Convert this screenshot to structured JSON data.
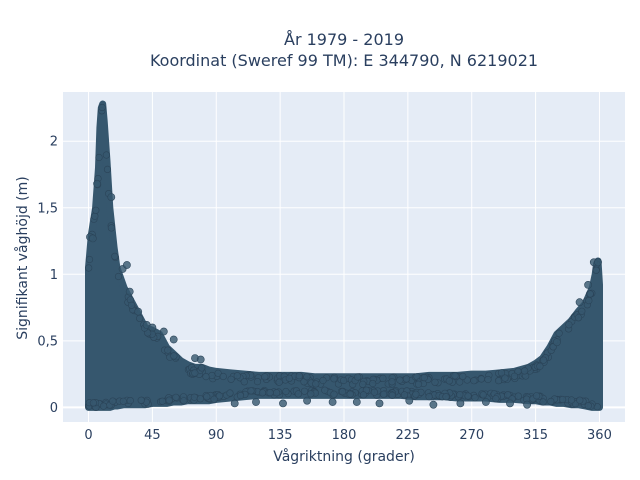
{
  "chart_data": {
    "type": "scatter",
    "title_line1": "År 1979 - 2019",
    "title_line2": "Koordinat (Sweref 99 TM): E 344790, N 6219021",
    "xlabel": "Vågriktning (grader)",
    "ylabel": "Signifikant våghöjd (m)",
    "xlim": [
      -18,
      378
    ],
    "ylim": [
      -0.11,
      2.37
    ],
    "x_ticks": [
      0,
      45,
      90,
      135,
      180,
      225,
      270,
      315,
      360
    ],
    "x_tick_labels": [
      "0",
      "45",
      "90",
      "135",
      "180",
      "225",
      "270",
      "315",
      "360"
    ],
    "y_ticks": [
      0,
      0.5,
      1,
      1.5,
      2
    ],
    "y_tick_labels": [
      "0",
      "0,5",
      "1",
      "1,5",
      "2"
    ],
    "grid": true,
    "marker_color": "#36576e",
    "plot_bg": "#e5ecf6",
    "envelope": {
      "x": [
        0,
        2,
        5,
        7,
        8,
        9,
        10,
        11,
        13,
        15,
        18,
        20,
        25,
        30,
        35,
        40,
        45,
        50,
        55,
        60,
        65,
        70,
        75,
        80,
        85,
        90,
        100,
        110,
        120,
        130,
        140,
        150,
        160,
        170,
        180,
        190,
        200,
        210,
        220,
        230,
        240,
        250,
        260,
        270,
        280,
        290,
        300,
        310,
        315,
        320,
        325,
        330,
        335,
        340,
        345,
        350,
        355,
        357,
        358,
        359,
        360
      ],
      "y_top": [
        1.05,
        1.3,
        1.5,
        1.8,
        2.1,
        2.25,
        2.28,
        2.15,
        1.85,
        1.5,
        1.2,
        1.05,
        0.9,
        0.8,
        0.7,
        0.6,
        0.58,
        0.55,
        0.45,
        0.4,
        0.35,
        0.32,
        0.3,
        0.3,
        0.28,
        0.27,
        0.26,
        0.25,
        0.24,
        0.24,
        0.24,
        0.24,
        0.23,
        0.23,
        0.23,
        0.23,
        0.23,
        0.23,
        0.23,
        0.23,
        0.24,
        0.24,
        0.24,
        0.25,
        0.25,
        0.26,
        0.27,
        0.3,
        0.33,
        0.37,
        0.45,
        0.55,
        0.6,
        0.65,
        0.72,
        0.78,
        0.9,
        1.0,
        1.08,
        1.1,
        0.92
      ],
      "y_bottom": [
        0.0,
        0.0,
        0.0,
        0.0,
        0.0,
        0.0,
        0.0,
        0.0,
        0.0,
        0.0,
        0.01,
        0.01,
        0.02,
        0.02,
        0.02,
        0.02,
        0.03,
        0.03,
        0.03,
        0.04,
        0.04,
        0.05,
        0.05,
        0.05,
        0.05,
        0.06,
        0.07,
        0.08,
        0.09,
        0.09,
        0.09,
        0.09,
        0.09,
        0.09,
        0.09,
        0.09,
        0.09,
        0.09,
        0.09,
        0.08,
        0.08,
        0.08,
        0.07,
        0.07,
        0.07,
        0.06,
        0.06,
        0.05,
        0.05,
        0.04,
        0.04,
        0.03,
        0.03,
        0.02,
        0.02,
        0.01,
        0.0,
        0.0,
        0.0,
        0.0,
        0.0
      ]
    },
    "outliers": [
      {
        "x": 1,
        "y": 1.28
      },
      {
        "x": 3,
        "y": 1.27
      },
      {
        "x": 24,
        "y": 1.04
      },
      {
        "x": 27,
        "y": 1.07
      },
      {
        "x": 29,
        "y": 0.87
      },
      {
        "x": 41,
        "y": 0.62
      },
      {
        "x": 45,
        "y": 0.6
      },
      {
        "x": 75,
        "y": 0.37
      },
      {
        "x": 79,
        "y": 0.36
      },
      {
        "x": 356,
        "y": 1.09
      },
      {
        "x": 359,
        "y": 1.09
      },
      {
        "x": 352,
        "y": 0.92
      },
      {
        "x": 346,
        "y": 0.79
      },
      {
        "x": 330,
        "y": 0.49
      },
      {
        "x": 103,
        "y": 0.03
      },
      {
        "x": 118,
        "y": 0.04
      },
      {
        "x": 137,
        "y": 0.03
      },
      {
        "x": 154,
        "y": 0.05
      },
      {
        "x": 172,
        "y": 0.04
      },
      {
        "x": 189,
        "y": 0.04
      },
      {
        "x": 205,
        "y": 0.03
      },
      {
        "x": 226,
        "y": 0.05
      },
      {
        "x": 243,
        "y": 0.02
      },
      {
        "x": 262,
        "y": 0.03
      },
      {
        "x": 280,
        "y": 0.04
      },
      {
        "x": 297,
        "y": 0.03
      },
      {
        "x": 309,
        "y": 0.02
      },
      {
        "x": 60,
        "y": 0.51
      },
      {
        "x": 53,
        "y": 0.57
      },
      {
        "x": 35,
        "y": 0.72
      },
      {
        "x": 16,
        "y": 1.58
      },
      {
        "x": 6,
        "y": 1.68
      }
    ]
  }
}
